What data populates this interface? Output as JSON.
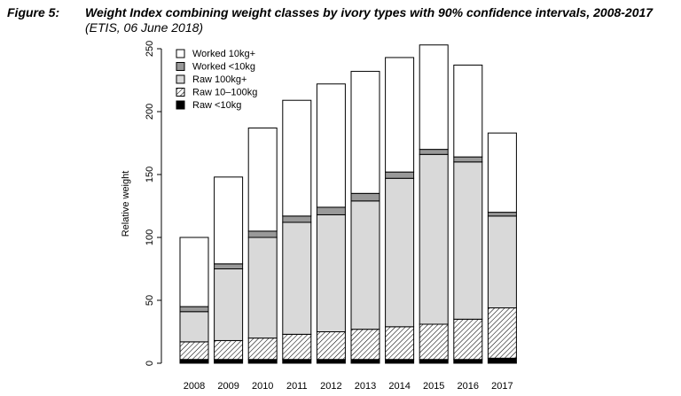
{
  "figure": {
    "label": "Figure 5:",
    "title": "Weight Index combining weight classes by ivory types with 90% confidence intervals, 2008-2017",
    "subtitle": "(ETIS, 06 June 2018)"
  },
  "chart_data": {
    "type": "bar",
    "stacked": true,
    "categories": [
      "2008",
      "2009",
      "2010",
      "2011",
      "2012",
      "2013",
      "2014",
      "2015",
      "2016",
      "2017"
    ],
    "ylabel": "Relative weight",
    "xlabel": "",
    "ylim": [
      0,
      250
    ],
    "yticks": [
      0,
      50,
      100,
      150,
      200,
      250
    ],
    "grid": false,
    "legend_position": "top-left",
    "series": [
      {
        "name": "Raw <10kg",
        "fill": "solid-black",
        "color": "#000000",
        "values": [
          3,
          3,
          3,
          3,
          3,
          3,
          3,
          3,
          3,
          4
        ]
      },
      {
        "name": "Raw 10–100kg",
        "fill": "hatched",
        "color": "#000000",
        "values": [
          14,
          15,
          17,
          20,
          22,
          24,
          26,
          28,
          32,
          40
        ]
      },
      {
        "name": "Raw 100kg+",
        "fill": "light-gray",
        "color": "#d9d9d9",
        "values": [
          24,
          57,
          80,
          89,
          93,
          102,
          118,
          135,
          125,
          73
        ]
      },
      {
        "name": "Worked <10kg",
        "fill": "dark-gray",
        "color": "#999999",
        "values": [
          4,
          4,
          5,
          5,
          6,
          6,
          5,
          4,
          4,
          3
        ]
      },
      {
        "name": "Worked 10kg+",
        "fill": "white",
        "color": "#ffffff",
        "values": [
          55,
          69,
          82,
          92,
          98,
          97,
          91,
          83,
          73,
          63
        ]
      }
    ],
    "legend_order": [
      "Worked 10kg+",
      "Worked <10kg",
      "Raw 100kg+",
      "Raw 10–100kg",
      "Raw <10kg"
    ]
  }
}
